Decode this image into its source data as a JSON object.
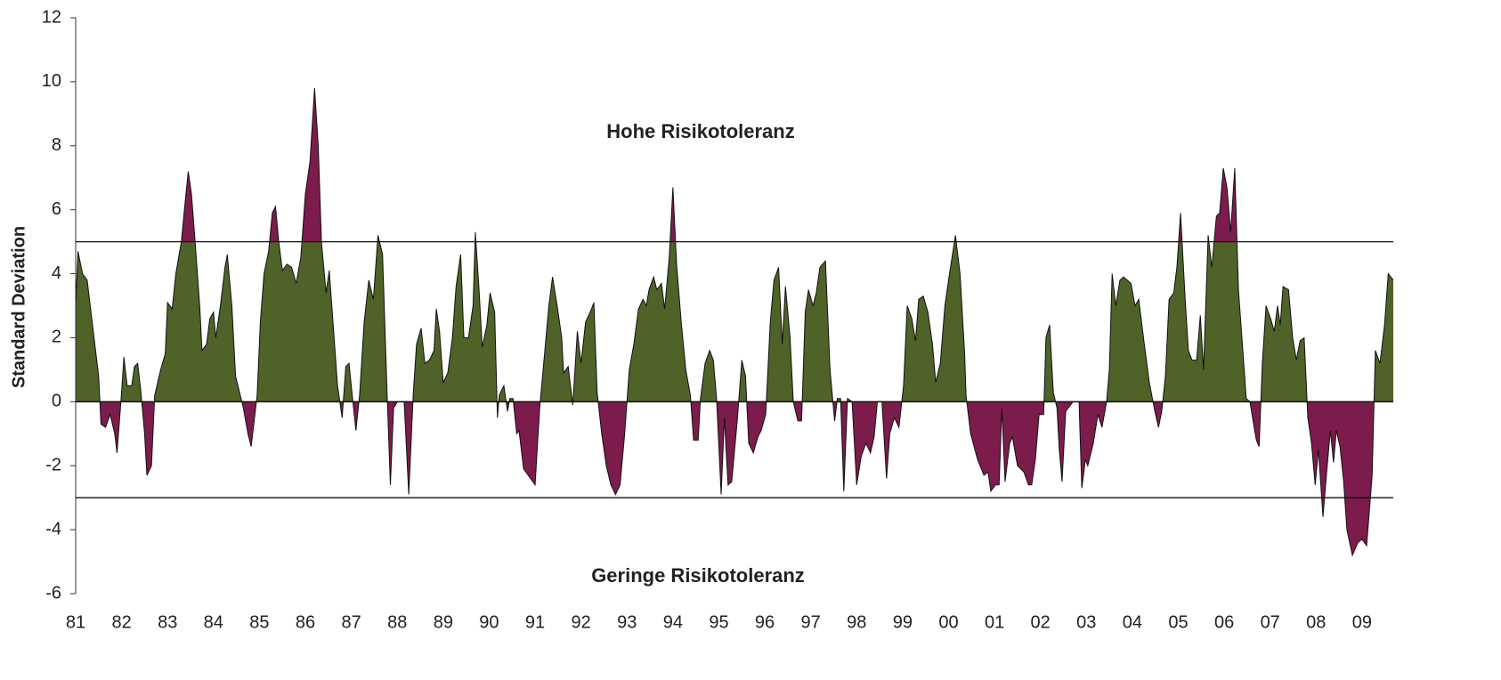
{
  "chart_data": {
    "type": "area",
    "y_label": "Standard Deviation",
    "annotations": [
      "Hohe Risikotoleranz",
      "Geringe Risikotoleranz"
    ],
    "color": "#4f6228",
    "alert_color": "#7b1c4c",
    "reference_lines": [
      5,
      -3
    ],
    "xlim": [
      1981,
      2009.68
    ],
    "ylim": [
      -6,
      12
    ],
    "yticks": [
      -6,
      -4,
      -2,
      0,
      2,
      4,
      6,
      8,
      10,
      12
    ],
    "xticks": [
      {
        "value": 1981,
        "label": "81"
      },
      {
        "value": 1982,
        "label": "82"
      },
      {
        "value": 1983,
        "label": "83"
      },
      {
        "value": 1984,
        "label": "84"
      },
      {
        "value": 1985,
        "label": "85"
      },
      {
        "value": 1986,
        "label": "86"
      },
      {
        "value": 1987,
        "label": "87"
      },
      {
        "value": 1988,
        "label": "88"
      },
      {
        "value": 1989,
        "label": "89"
      },
      {
        "value": 1990,
        "label": "90"
      },
      {
        "value": 1991,
        "label": "91"
      },
      {
        "value": 1992,
        "label": "92"
      },
      {
        "value": 1993,
        "label": "93"
      },
      {
        "value": 1994,
        "label": "94"
      },
      {
        "value": 1995,
        "label": "95"
      },
      {
        "value": 1996,
        "label": "96"
      },
      {
        "value": 1997,
        "label": "97"
      },
      {
        "value": 1998,
        "label": "98"
      },
      {
        "value": 1999,
        "label": "99"
      },
      {
        "value": 2000,
        "label": "00"
      },
      {
        "value": 2001,
        "label": "01"
      },
      {
        "value": 2002,
        "label": "02"
      },
      {
        "value": 2003,
        "label": "03"
      },
      {
        "value": 2004,
        "label": "04"
      },
      {
        "value": 2005,
        "label": "05"
      },
      {
        "value": 2006,
        "label": "06"
      },
      {
        "value": 2007,
        "label": "07"
      },
      {
        "value": 2008,
        "label": "08"
      },
      {
        "value": 2009,
        "label": "09"
      }
    ],
    "x": [
      1981.0,
      1981.05,
      1981.15,
      1981.25,
      1981.4,
      1981.5,
      1981.55,
      1981.65,
      1981.75,
      1981.85,
      1981.9,
      1982.0,
      1982.05,
      1982.12,
      1982.22,
      1982.28,
      1982.35,
      1982.42,
      1982.5,
      1982.55,
      1982.65,
      1982.72,
      1982.85,
      1982.95,
      1983.0,
      1983.1,
      1983.18,
      1983.3,
      1983.38,
      1983.45,
      1983.52,
      1983.6,
      1983.7,
      1983.75,
      1983.85,
      1983.92,
      1984.0,
      1984.05,
      1984.15,
      1984.25,
      1984.3,
      1984.4,
      1984.48,
      1984.55,
      1984.65,
      1984.75,
      1984.82,
      1984.95,
      1985.02,
      1985.1,
      1985.2,
      1985.28,
      1985.35,
      1985.42,
      1985.5,
      1985.6,
      1985.7,
      1985.8,
      1985.9,
      1986.0,
      1986.1,
      1986.2,
      1986.28,
      1986.35,
      1986.45,
      1986.52,
      1986.6,
      1986.7,
      1986.8,
      1986.88,
      1986.95,
      1987.02,
      1987.1,
      1987.18,
      1987.28,
      1987.38,
      1987.48,
      1987.58,
      1987.68,
      1987.78,
      1987.85,
      1987.92,
      1988.0,
      1988.15,
      1988.25,
      1988.35,
      1988.42,
      1988.52,
      1988.6,
      1988.7,
      1988.8,
      1988.85,
      1988.92,
      1989.0,
      1989.1,
      1989.2,
      1989.28,
      1989.38,
      1989.45,
      1989.55,
      1989.65,
      1989.7,
      1989.78,
      1989.85,
      1989.95,
      1990.02,
      1990.12,
      1990.18,
      1990.22,
      1990.32,
      1990.4,
      1990.45,
      1990.52,
      1990.6,
      1990.65,
      1990.75,
      1990.85,
      1991.0,
      1991.1,
      1991.2,
      1991.3,
      1991.38,
      1991.48,
      1991.58,
      1991.62,
      1991.72,
      1991.82,
      1991.92,
      1992.0,
      1992.1,
      1992.2,
      1992.28,
      1992.35,
      1992.45,
      1992.55,
      1992.65,
      1992.75,
      1992.85,
      1992.95,
      1993.05,
      1993.15,
      1993.25,
      1993.35,
      1993.42,
      1993.48,
      1993.58,
      1993.65,
      1993.75,
      1993.82,
      1993.92,
      1994.0,
      1994.08,
      1994.18,
      1994.28,
      1994.38,
      1994.45,
      1994.55,
      1994.6,
      1994.7,
      1994.8,
      1994.88,
      1994.95,
      1995.05,
      1995.12,
      1995.2,
      1995.28,
      1995.4,
      1995.5,
      1995.58,
      1995.65,
      1995.75,
      1995.85,
      1995.92,
      1996.02,
      1996.12,
      1996.2,
      1996.3,
      1996.38,
      1996.45,
      1996.55,
      1996.62,
      1996.72,
      1996.8,
      1996.88,
      1996.95,
      1997.05,
      1997.12,
      1997.2,
      1997.32,
      1997.42,
      1997.52,
      1997.58,
      1997.65,
      1997.72,
      1997.8,
      1997.9,
      1998.0,
      1998.1,
      1998.2,
      1998.3,
      1998.38,
      1998.45,
      1998.55,
      1998.65,
      1998.72,
      1998.82,
      1998.92,
      1999.02,
      1999.1,
      1999.2,
      1999.28,
      1999.35,
      1999.45,
      1999.55,
      1999.65,
      1999.72,
      1999.82,
      1999.92,
      2000.02,
      2000.15,
      2000.25,
      2000.35,
      2000.38,
      2000.48,
      2000.63,
      2000.77,
      2000.86,
      2000.92,
      2001.02,
      2001.1,
      2001.16,
      2001.23,
      2001.33,
      2001.39,
      2001.5,
      2001.64,
      2001.74,
      2001.81,
      2001.89,
      2001.97,
      2002.07,
      2002.12,
      2002.2,
      2002.28,
      2002.36,
      2002.41,
      2002.47,
      2002.55,
      2002.71,
      2002.84,
      2002.9,
      2002.98,
      2003.03,
      2003.15,
      2003.25,
      2003.34,
      2003.44,
      2003.5,
      2003.56,
      2003.64,
      2003.73,
      2003.81,
      2003.97,
      2004.06,
      2004.14,
      2004.26,
      2004.37,
      2004.49,
      2004.57,
      2004.64,
      2004.72,
      2004.8,
      2004.9,
      2004.97,
      2005.05,
      2005.15,
      2005.22,
      2005.3,
      2005.4,
      2005.48,
      2005.55,
      2005.65,
      2005.73,
      2005.83,
      2005.9,
      2005.98,
      2006.06,
      2006.14,
      2006.23,
      2006.31,
      2006.41,
      2006.48,
      2006.56,
      2006.64,
      2006.7,
      2006.76,
      2006.83,
      2006.91,
      2007.01,
      2007.09,
      2007.16,
      2007.22,
      2007.28,
      2007.4,
      2007.49,
      2007.57,
      2007.65,
      2007.74,
      2007.82,
      2007.9,
      2007.98,
      2008.05,
      2008.15,
      2008.23,
      2008.31,
      2008.38,
      2008.44,
      2008.52,
      2008.6,
      2008.67,
      2008.79,
      2008.91,
      2009.0,
      2009.1,
      2009.22,
      2009.29,
      2009.39,
      2009.49,
      2009.57,
      2009.68
    ],
    "values": [
      3.0,
      4.7,
      4.0,
      3.8,
      2.0,
      0.8,
      -0.7,
      -0.8,
      -0.4,
      -1.0,
      -1.6,
      0.3,
      1.4,
      0.5,
      0.5,
      1.1,
      1.2,
      0.3,
      -1.0,
      -2.3,
      -2.0,
      0.2,
      1.0,
      1.5,
      3.1,
      2.9,
      4.0,
      5.0,
      6.2,
      7.2,
      6.5,
      5.0,
      3.0,
      1.6,
      1.8,
      2.6,
      2.8,
      2.0,
      3.0,
      4.2,
      4.6,
      3.0,
      0.8,
      0.4,
      -0.2,
      -1.0,
      -1.4,
      0.2,
      2.5,
      4.0,
      4.7,
      5.9,
      6.1,
      5.0,
      4.1,
      4.3,
      4.2,
      3.7,
      4.5,
      6.5,
      7.5,
      9.8,
      8.0,
      5.0,
      3.4,
      4.1,
      2.5,
      0.5,
      -0.5,
      1.1,
      1.2,
      0.2,
      -0.9,
      0.2,
      2.5,
      3.8,
      3.2,
      5.2,
      4.6,
      0.2,
      -2.6,
      -0.2,
      0,
      0,
      -2.9,
      0.3,
      1.8,
      2.3,
      1.2,
      1.3,
      1.6,
      2.9,
      2.2,
      0.6,
      0.9,
      2.0,
      3.6,
      4.6,
      2.0,
      2.0,
      3.0,
      5.3,
      3.5,
      1.7,
      2.4,
      3.4,
      2.8,
      -0.5,
      0.2,
      0.5,
      -0.3,
      0.1,
      0.1,
      -1.0,
      -0.9,
      -2.1,
      -2.3,
      -2.6,
      -0.2,
      1.4,
      3.0,
      3.9,
      3.0,
      2.0,
      0.9,
      1.1,
      -0.1,
      2.2,
      1.2,
      2.5,
      2.8,
      3.1,
      0.3,
      -1.0,
      -2.0,
      -2.6,
      -2.9,
      -2.6,
      -1.0,
      1.0,
      1.8,
      2.9,
      3.2,
      3.0,
      3.5,
      3.9,
      3.5,
      3.7,
      2.9,
      4.5,
      6.7,
      4.3,
      2.5,
      1.0,
      0.2,
      -1.2,
      -1.2,
      0.1,
      1.2,
      1.6,
      1.3,
      0.1,
      -2.9,
      -0.5,
      -2.6,
      -2.5,
      -0.6,
      1.3,
      0.8,
      -1.3,
      -1.6,
      -1.1,
      -0.9,
      -0.4,
      2.5,
      3.8,
      4.2,
      1.8,
      3.6,
      2.0,
      0,
      -0.6,
      -0.6,
      2.8,
      3.5,
      3.0,
      3.4,
      4.2,
      4.4,
      1.0,
      -0.6,
      0.1,
      0.1,
      -2.8,
      0.1,
      0,
      -2.6,
      -1.7,
      -1.3,
      -1.6,
      -1.1,
      0,
      0,
      -2.4,
      -1.0,
      -0.5,
      -0.8,
      0.5,
      3.0,
      2.6,
      1.9,
      3.2,
      3.3,
      2.8,
      1.8,
      0.6,
      1.2,
      3.0,
      4.0,
      5.2,
      4.0,
      1.5,
      0.2,
      -1.0,
      -1.8,
      -2.3,
      -2.2,
      -2.8,
      -2.6,
      -2.6,
      -0.2,
      -2.5,
      -1.3,
      -1.1,
      -2.0,
      -2.2,
      -2.6,
      -2.6,
      -1.8,
      -0.4,
      -0.4,
      2.0,
      2.4,
      0.3,
      -0.2,
      -1.5,
      -2.5,
      -0.3,
      0,
      0,
      -2.7,
      -1.8,
      -2.0,
      -1.3,
      -0.4,
      -0.8,
      0,
      1.0,
      4.0,
      3.0,
      3.8,
      3.9,
      3.7,
      3.0,
      3.2,
      1.8,
      0.6,
      -0.3,
      -0.8,
      -0.3,
      0.8,
      3.2,
      3.4,
      4.2,
      5.9,
      3.2,
      1.6,
      1.3,
      1.3,
      2.7,
      1.0,
      5.2,
      4.2,
      5.8,
      5.9,
      7.3,
      6.7,
      5.3,
      7.3,
      3.5,
      1.5,
      0.1,
      0,
      -0.7,
      -1.2,
      -1.4,
      1.2,
      3.0,
      2.6,
      2.2,
      3.0,
      2.4,
      3.6,
      3.5,
      2.0,
      1.3,
      1.9,
      2.0,
      -0.5,
      -1.3,
      -2.6,
      -1.5,
      -3.6,
      -2.2,
      -0.9,
      -1.9,
      -0.9,
      -1.4,
      -2.5,
      -4.0,
      -4.8,
      -4.4,
      -4.3,
      -4.5,
      -2.3,
      1.6,
      1.2,
      2.4,
      4.0,
      3.8
    ]
  }
}
